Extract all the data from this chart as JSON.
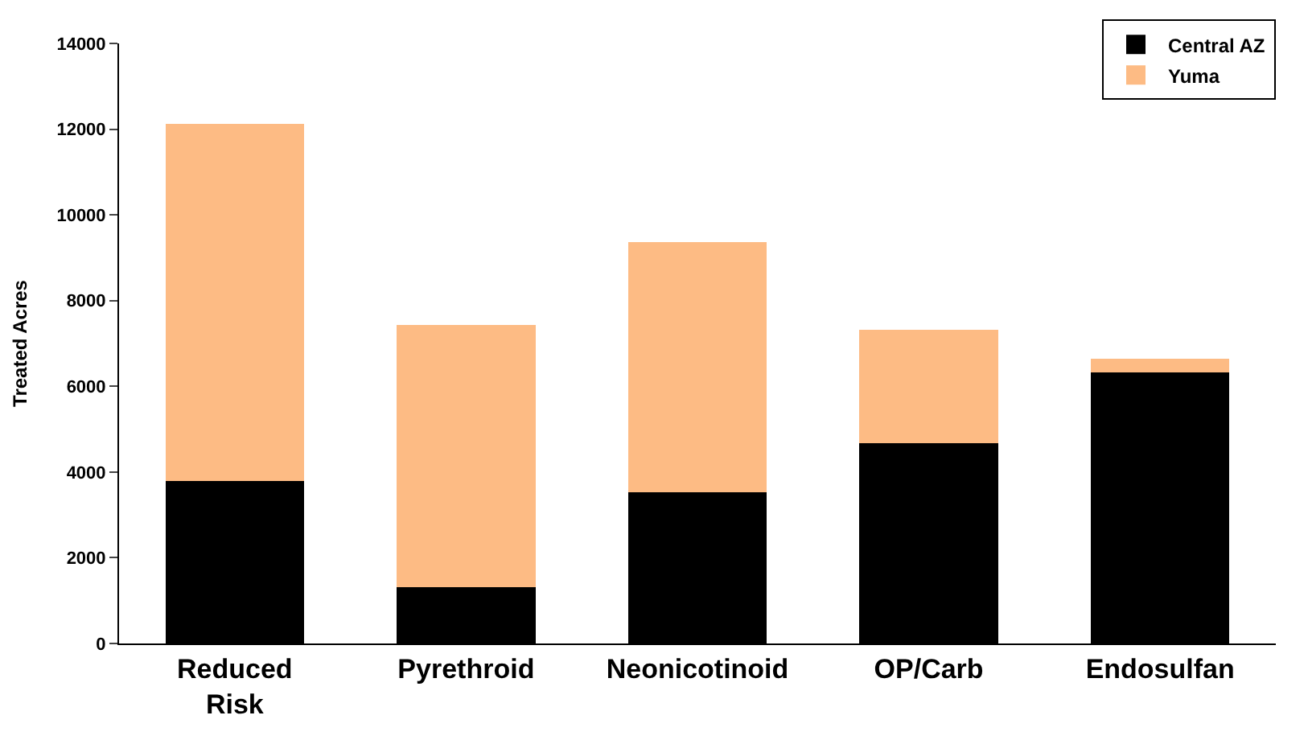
{
  "chart_data": {
    "type": "bar",
    "ylabel": "Treated Acres",
    "categories": [
      "Reduced Risk",
      "Pyrethroid",
      "Neonicotinoid",
      "OP/Carb",
      "Endosulfan"
    ],
    "stacked": true,
    "series": [
      {
        "name": "Central AZ",
        "color": "#000000",
        "values": [
          3800,
          1320,
          3520,
          4680,
          6320
        ]
      },
      {
        "name": "Yuma",
        "color": "#fdbb84",
        "values": [
          8320,
          6120,
          5840,
          2640,
          320
        ]
      }
    ],
    "ylim": [
      0,
      14000
    ],
    "yticks": [
      0,
      2000,
      4000,
      6000,
      8000,
      10000,
      12000,
      14000
    ],
    "legend": "top right"
  }
}
